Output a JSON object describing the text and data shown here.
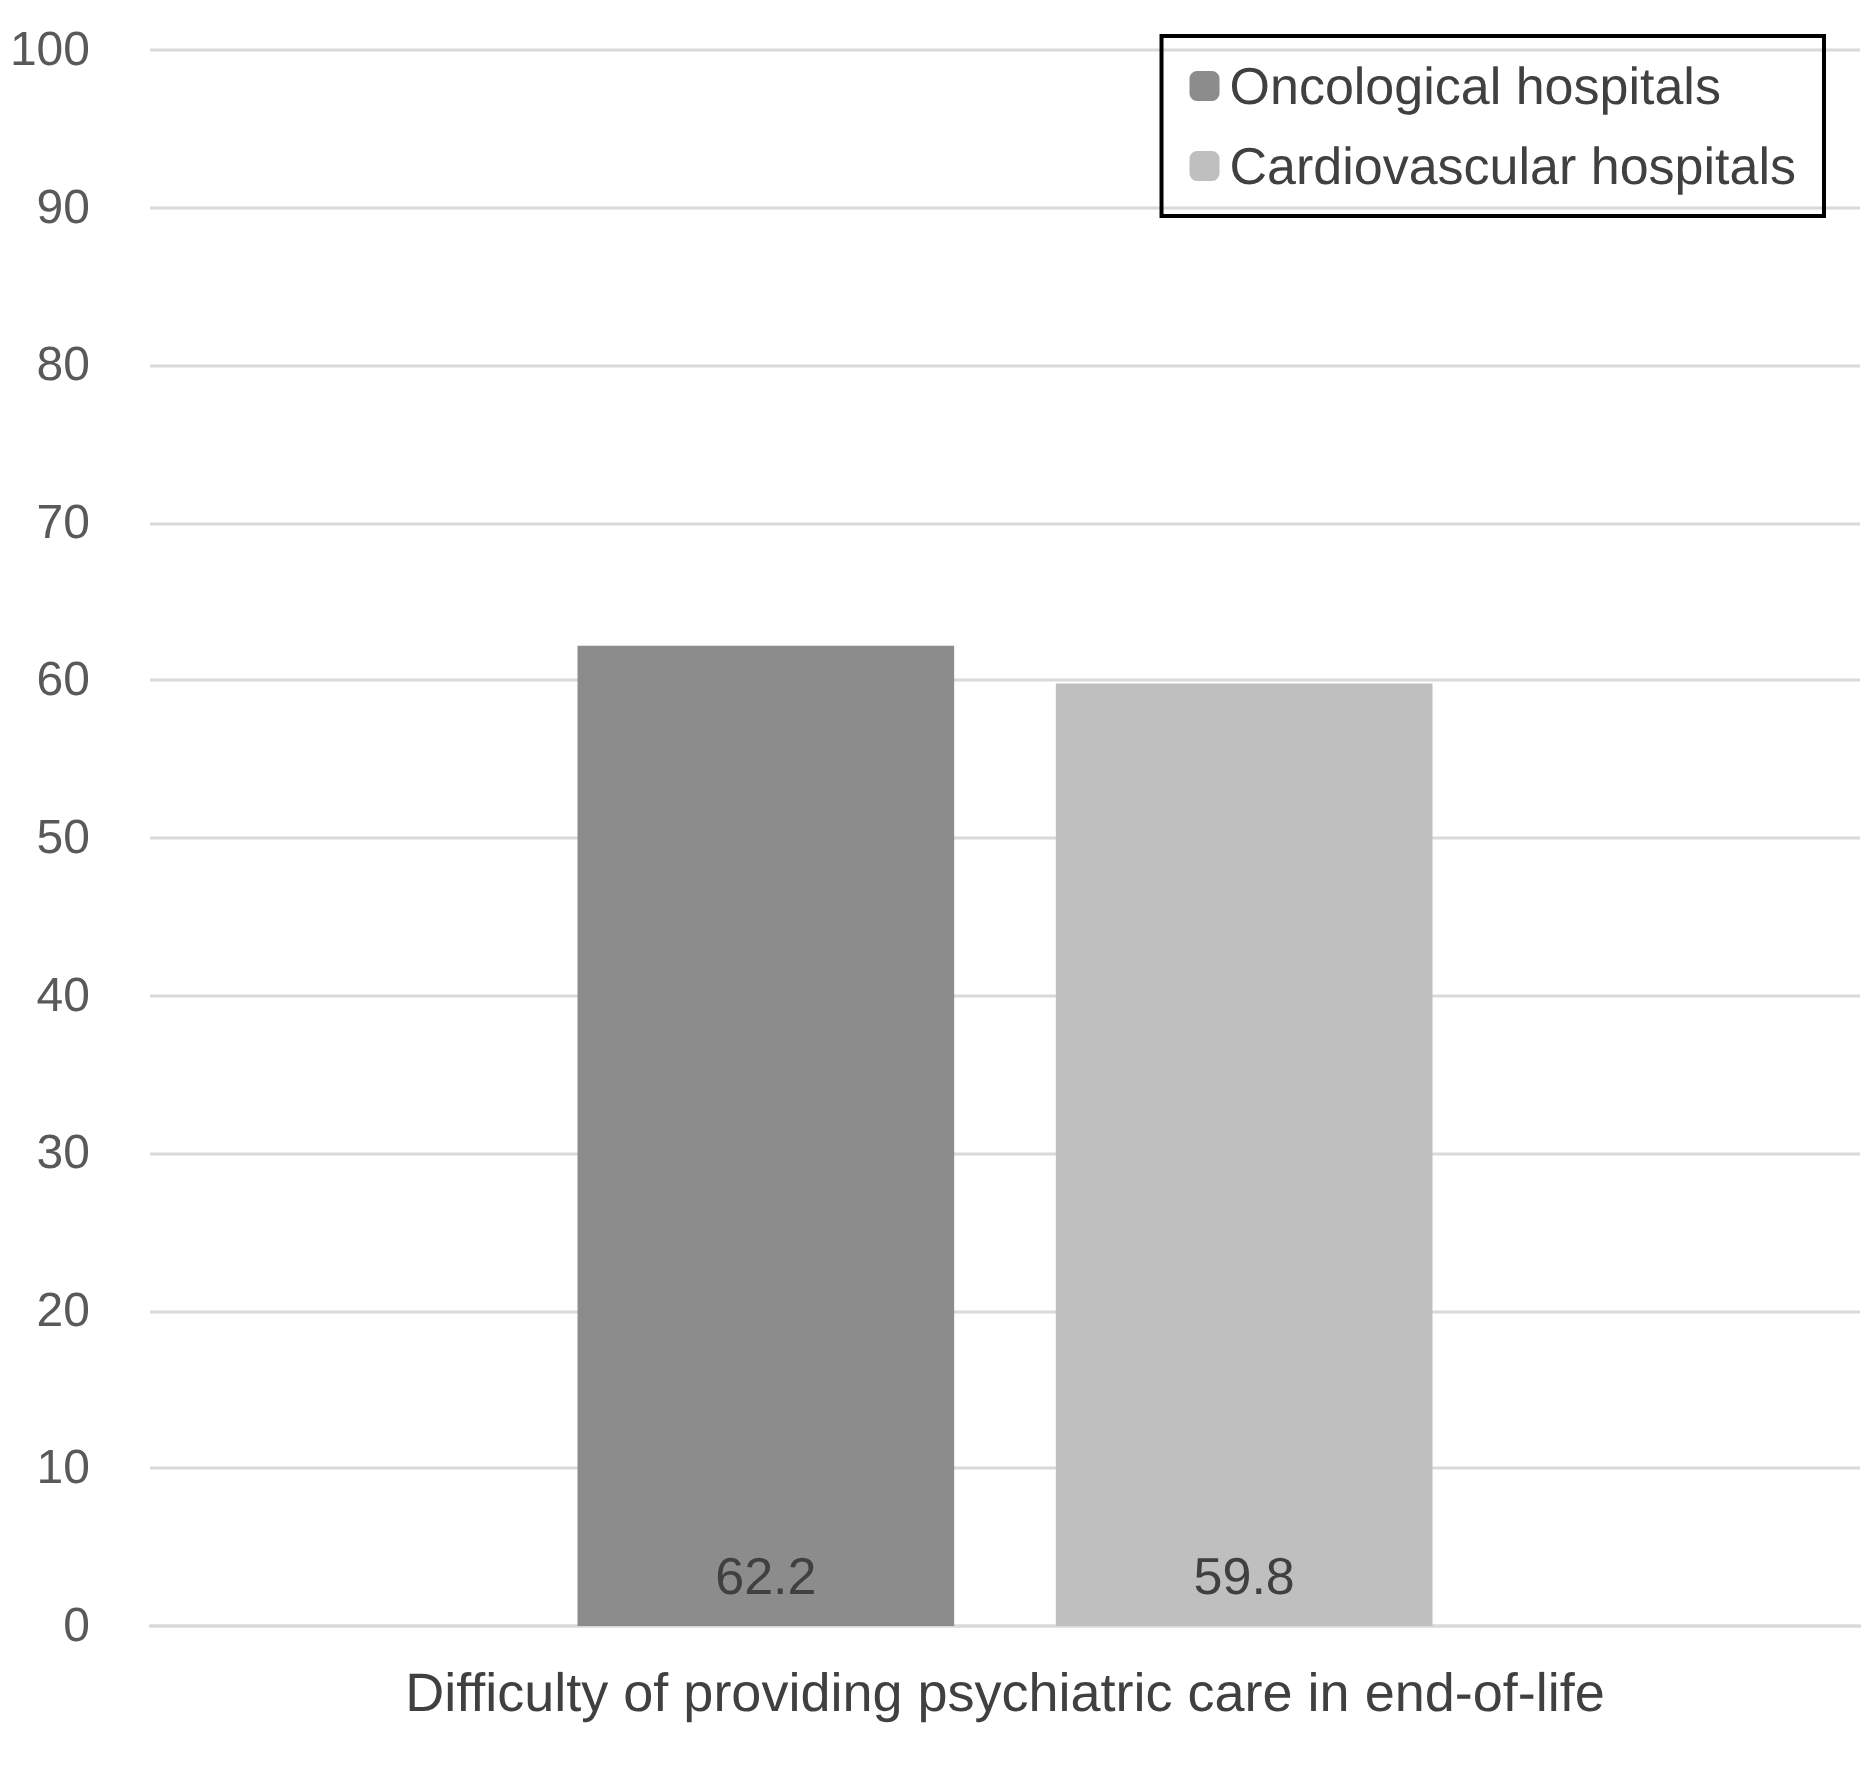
{
  "chart_data": {
    "type": "bar",
    "categories": [
      "Difficulty of providing psychiatric care in end-of-life"
    ],
    "series": [
      {
        "name": "Oncological hospitals",
        "color": "#8c8c8c",
        "values": [
          62.2
        ]
      },
      {
        "name": "Cardiovascular hospitals",
        "color": "#bfbfbf",
        "values": [
          59.8
        ]
      }
    ],
    "ylim": [
      0,
      100
    ],
    "yticks": [
      0,
      10,
      20,
      30,
      40,
      50,
      60,
      70,
      80,
      90,
      100
    ],
    "grid": "y",
    "legend": "top right",
    "data_labels": true
  }
}
